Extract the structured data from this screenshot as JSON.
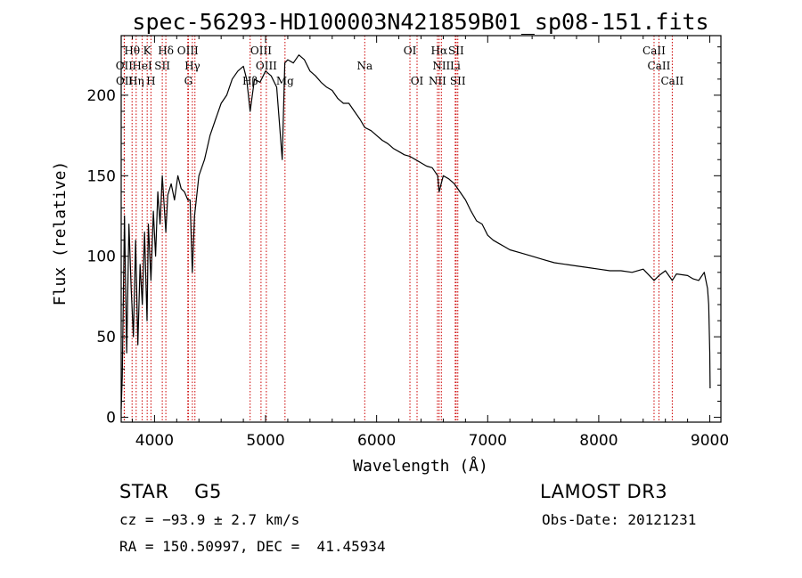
{
  "chart_data": {
    "type": "line",
    "title": "spec-56293-HD100003N421859B01_sp08-151.fits",
    "xlabel": "Wavelength (Å)",
    "ylabel": "Flux (relative)",
    "xlim": [
      3700,
      9100
    ],
    "ylim": [
      -3,
      237
    ],
    "xticks": [
      4000,
      5000,
      6000,
      7000,
      8000,
      9000
    ],
    "yticks": [
      0,
      50,
      100,
      150,
      200
    ],
    "series": [
      {
        "name": "spectrum",
        "x": [
          3700,
          3710,
          3730,
          3750,
          3770,
          3790,
          3810,
          3830,
          3850,
          3870,
          3890,
          3910,
          3933,
          3945,
          3968,
          3990,
          4010,
          4030,
          4050,
          4070,
          4102,
          4120,
          4150,
          4180,
          4210,
          4240,
          4270,
          4300,
          4320,
          4340,
          4360,
          4400,
          4450,
          4500,
          4550,
          4600,
          4650,
          4700,
          4750,
          4800,
          4830,
          4861,
          4900,
          4950,
          5000,
          5050,
          5100,
          5150,
          5173,
          5200,
          5250,
          5300,
          5350,
          5400,
          5450,
          5500,
          5550,
          5600,
          5650,
          5700,
          5750,
          5800,
          5850,
          5893,
          5950,
          6000,
          6050,
          6100,
          6150,
          6200,
          6250,
          6300,
          6350,
          6400,
          6450,
          6500,
          6550,
          6563,
          6600,
          6650,
          6700,
          6750,
          6800,
          6850,
          6900,
          6950,
          7000,
          7050,
          7100,
          7150,
          7200,
          7300,
          7400,
          7500,
          7600,
          7700,
          7800,
          7900,
          8000,
          8100,
          8200,
          8300,
          8400,
          8498,
          8542,
          8600,
          8662,
          8700,
          8800,
          8850,
          8900,
          8950,
          8980,
          8990,
          9000,
          9003
        ],
        "values": [
          5,
          25,
          125,
          40,
          120,
          80,
          50,
          110,
          45,
          95,
          70,
          115,
          60,
          120,
          85,
          128,
          100,
          140,
          120,
          150,
          115,
          138,
          145,
          135,
          150,
          142,
          140,
          135,
          135,
          90,
          125,
          150,
          160,
          175,
          185,
          195,
          200,
          210,
          215,
          218,
          210,
          190,
          210,
          208,
          215,
          212,
          205,
          160,
          220,
          222,
          220,
          225,
          222,
          215,
          212,
          208,
          205,
          203,
          198,
          195,
          195,
          190,
          185,
          180,
          178,
          175,
          172,
          170,
          167,
          165,
          163,
          162,
          160,
          158,
          156,
          155,
          150,
          140,
          150,
          148,
          145,
          140,
          135,
          128,
          122,
          120,
          113,
          110,
          108,
          106,
          104,
          102,
          100,
          98,
          96,
          95,
          94,
          93,
          92,
          91,
          91,
          90,
          92,
          85,
          88,
          91,
          85,
          89,
          88,
          86,
          85,
          90,
          80,
          70,
          40,
          18
        ]
      }
    ],
    "lines": [
      {
        "name": "H-theta",
        "wl": 3798,
        "label": "Hθ",
        "row": 1
      },
      {
        "name": "OII",
        "wl": 3727,
        "label": "OII",
        "row": 2
      },
      {
        "name": "OII-b",
        "wl": 3729,
        "label": "OII",
        "row": 3
      },
      {
        "name": "H-eta",
        "wl": 3835,
        "label": "Hη",
        "row": 3
      },
      {
        "name": "HeI",
        "wl": 3889,
        "label": "HeI",
        "row": 2
      },
      {
        "name": "CaII-K",
        "wl": 3934,
        "label": "K",
        "row": 1
      },
      {
        "name": "CaII-H",
        "wl": 3968,
        "label": "H",
        "row": 3
      },
      {
        "name": "SII-4070",
        "wl": 4070,
        "label": "SII",
        "row": 2
      },
      {
        "name": "H-delta",
        "wl": 4102,
        "label": "Hδ",
        "row": 1
      },
      {
        "name": "OIII-4300",
        "wl": 4300,
        "label": "OIII",
        "row": 1
      },
      {
        "name": "G-band",
        "wl": 4305,
        "label": "G",
        "row": 3
      },
      {
        "name": "H-gamma",
        "wl": 4341,
        "label": "Hγ",
        "row": 2
      },
      {
        "name": "OIII-4364",
        "wl": 4364,
        "label": "",
        "row": 0
      },
      {
        "name": "H-beta",
        "wl": 4861,
        "label": "Hβ",
        "row": 3
      },
      {
        "name": "OIII-4959",
        "wl": 4959,
        "label": "OIII",
        "row": 1
      },
      {
        "name": "OIII-5007",
        "wl": 5007,
        "label": "OIII",
        "row": 2
      },
      {
        "name": "Mg",
        "wl": 5175,
        "label": "Mg",
        "row": 3
      },
      {
        "name": "Na",
        "wl": 5893,
        "label": "Na",
        "row": 2
      },
      {
        "name": "OI-6300",
        "wl": 6300,
        "label": "OI",
        "row": 1
      },
      {
        "name": "OI-6364",
        "wl": 6364,
        "label": "OI",
        "row": 3
      },
      {
        "name": "NII-6548",
        "wl": 6548,
        "label": "NII",
        "row": 3
      },
      {
        "name": "H-alpha",
        "wl": 6563,
        "label": "Hα",
        "row": 1
      },
      {
        "name": "NII-6583",
        "wl": 6583,
        "label": "NII",
        "row": 2
      },
      {
        "name": "Li",
        "wl": 6708,
        "label": "Li",
        "row": 2
      },
      {
        "name": "SII-6716",
        "wl": 6716,
        "label": "SII",
        "row": 1
      },
      {
        "name": "SII-6731",
        "wl": 6731,
        "label": "SII",
        "row": 3
      },
      {
        "name": "CaII-8498",
        "wl": 8498,
        "label": "CaII",
        "row": 1
      },
      {
        "name": "CaII-8542",
        "wl": 8542,
        "label": "CaII",
        "row": 2
      },
      {
        "name": "CaII-8662",
        "wl": 8662,
        "label": "CaII",
        "row": 3
      }
    ]
  },
  "info": {
    "class_line": "STAR    G5",
    "cz_line": "cz = −93.9 ± 2.7 km/s",
    "coords_line": "RA = 150.50997, DEC =  41.45934",
    "survey": "LAMOST DR3",
    "obs_date": "Obs-Date: 20121231"
  },
  "colors": {
    "line": "#000000",
    "marker": "#cc0000",
    "background": "#ffffff"
  }
}
